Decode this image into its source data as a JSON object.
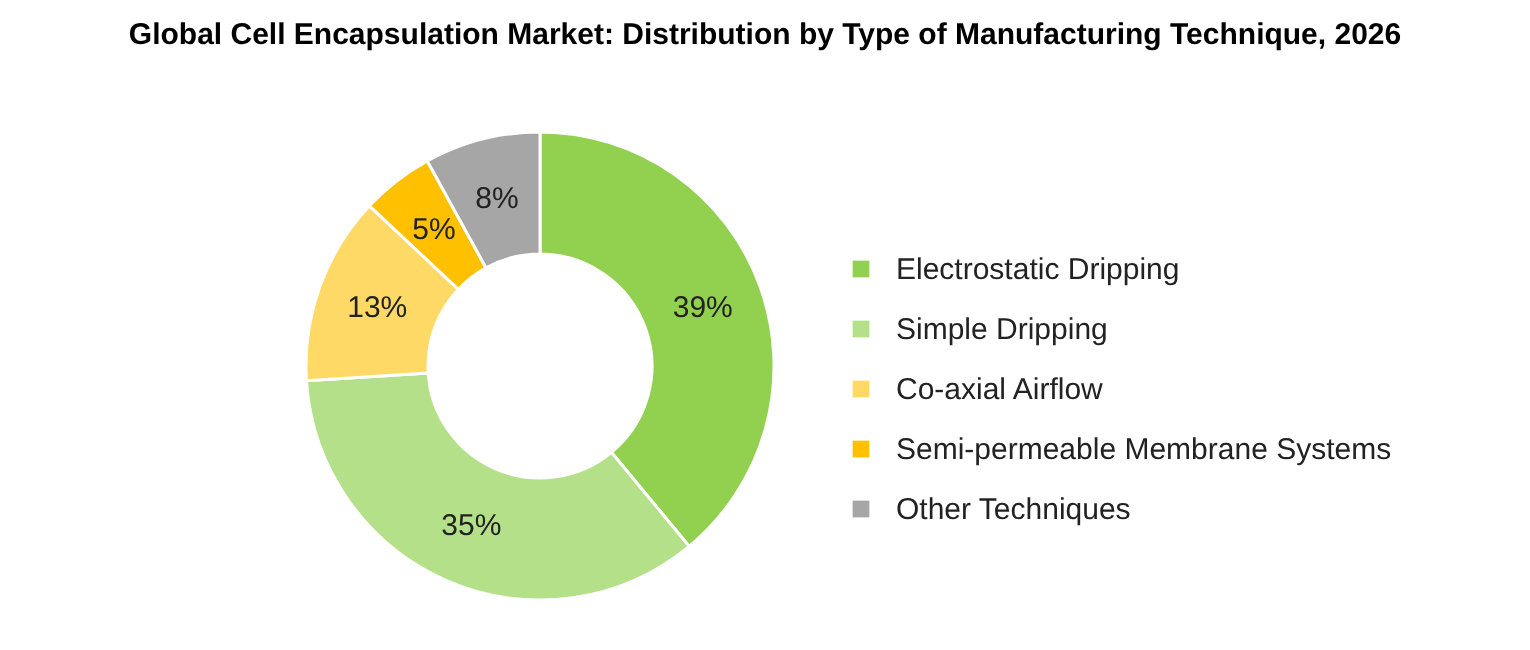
{
  "chart_data": {
    "type": "donut",
    "title": "Global Cell Encapsulation Market: Distribution by Type of Manufacturing Technique, 2026",
    "categories": [
      "Electrostatic Dripping",
      "Simple Dripping",
      "Co-axial Airflow",
      "Semi-permeable Membrane Systems",
      "Other Techniques"
    ],
    "values": [
      39,
      35,
      13,
      5,
      8
    ],
    "colors": [
      "#92d050",
      "#b5e08a",
      "#ffd966",
      "#ffc000",
      "#a6a6a6"
    ],
    "value_labels": [
      "39%",
      "35%",
      "13%",
      "5%",
      "8%"
    ],
    "legend": "right"
  }
}
